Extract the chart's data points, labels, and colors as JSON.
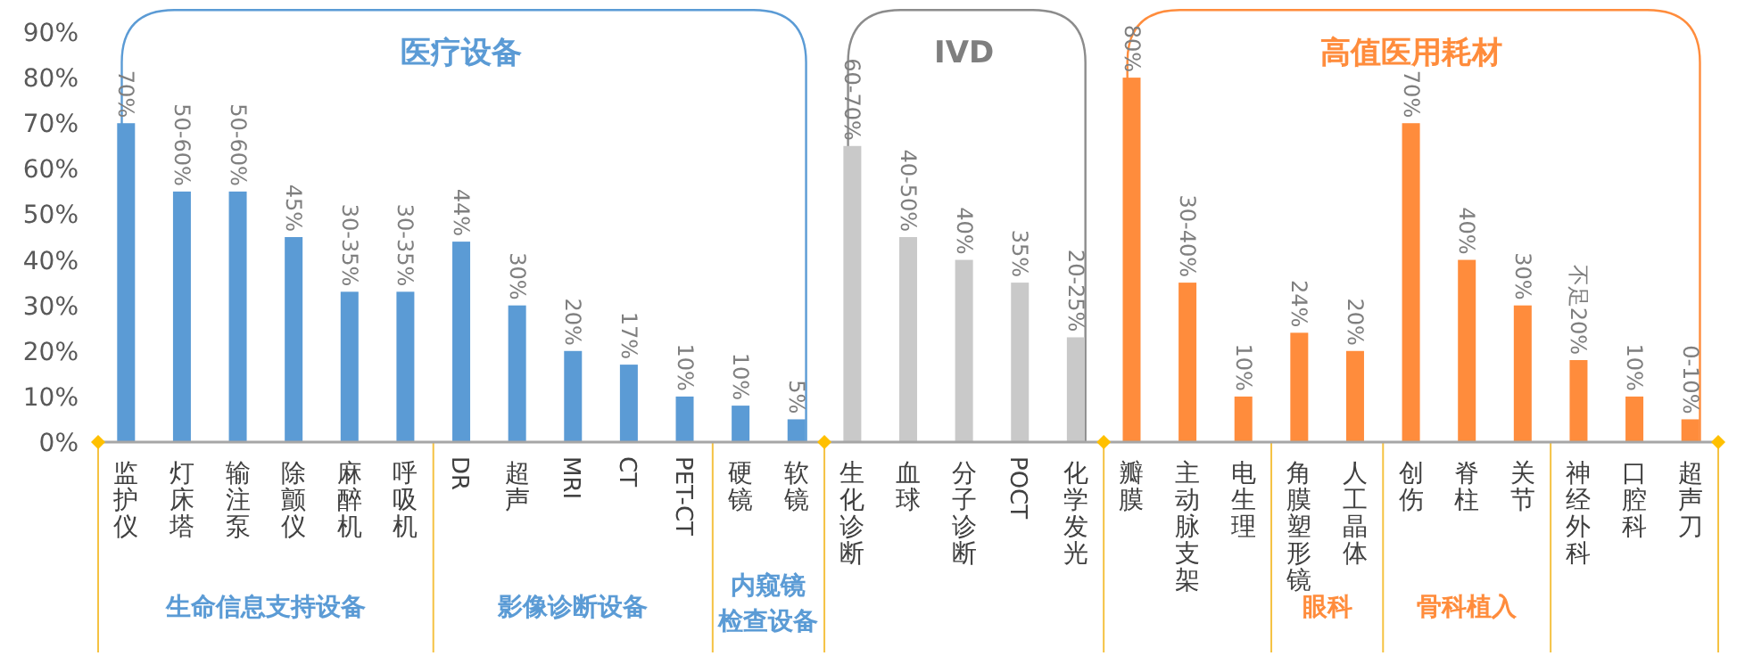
{
  "chart_data": {
    "type": "bar",
    "categories": [
      "监护仪",
      "灯床塔",
      "输注泵",
      "除颤仪",
      "麻醉机",
      "呼吸机",
      "DR",
      "超声",
      "MRI",
      "CT",
      "PET-CT",
      "硬镜",
      "软镜",
      "生化诊断",
      "血球",
      "分子诊断",
      "POCT",
      "化学发光",
      "瓣膜",
      "主动脉支架",
      "电生理",
      "角膜塑形镜",
      "人工晶体",
      "创伤",
      "脊柱",
      "关节",
      "神经外科",
      "口腔科",
      "超声刀"
    ],
    "values": [
      70,
      55,
      55,
      45,
      33,
      33,
      44,
      30,
      20,
      17,
      10,
      8,
      5,
      65,
      45,
      40,
      35,
      23,
      80,
      35,
      10,
      24,
      20,
      70,
      40,
      30,
      18,
      10,
      5
    ],
    "colors": [
      "#5b9bd5",
      "#5b9bd5",
      "#5b9bd5",
      "#5b9bd5",
      "#5b9bd5",
      "#5b9bd5",
      "#5b9bd5",
      "#5b9bd5",
      "#5b9bd5",
      "#5b9bd5",
      "#5b9bd5",
      "#5b9bd5",
      "#5b9bd5",
      "#c9c9c9",
      "#c9c9c9",
      "#c9c9c9",
      "#c9c9c9",
      "#c9c9c9",
      "#ff8c3c",
      "#ff8c3c",
      "#ff8c3c",
      "#ff8c3c",
      "#ff8c3c",
      "#ff8c3c",
      "#ff8c3c",
      "#ff8c3c",
      "#ff8c3c",
      "#ff8c3c",
      "#ff8c3c"
    ],
    "value_labels": [
      "70%",
      null,
      null,
      "45%",
      null,
      null,
      "44%",
      "30%",
      "20%",
      "17%",
      "10%",
      null,
      "5%",
      null,
      null,
      "40%",
      "35%",
      null,
      "80%",
      null,
      "10%",
      "24%",
      "20%",
      "70%",
      "40%",
      "30%",
      "不足20%",
      "10%",
      null
    ],
    "ylim": [
      0,
      90
    ],
    "yticks": [
      {
        "value": 0,
        "label": "0%"
      },
      {
        "value": 10,
        "label": "10%"
      },
      {
        "value": 20,
        "label": "20%"
      },
      {
        "value": 30,
        "label": "30%"
      },
      {
        "value": 40,
        "label": "40%"
      },
      {
        "value": 50,
        "label": "50%"
      },
      {
        "value": 60,
        "label": "60%"
      },
      {
        "value": 70,
        "label": "70%"
      },
      {
        "value": 80,
        "label": "80%"
      },
      {
        "value": 90,
        "label": "90%"
      }
    ],
    "annotations": [
      "医疗设备",
      "IVD",
      "高值医用耗材",
      "生命信息支持设备",
      "影像诊断设备",
      "内窥镜检查设备",
      "眼科",
      "骨科植入",
      {
        "text": "50-60%",
        "x": "灯床塔",
        "y": 55
      },
      {
        "text": "50-60%",
        "x": "输注泵",
        "y": 55
      },
      {
        "text": "30-35%",
        "x": "麻醉机",
        "y": 33
      },
      {
        "text": "30-35%",
        "x": "呼吸机",
        "y": 33
      },
      {
        "text": "10%",
        "x": "硬镜",
        "y": 8
      },
      {
        "text": "60-70%",
        "x": "生化诊断",
        "y": 65
      },
      {
        "text": "40-50%",
        "x": "血球",
        "y": 45
      },
      {
        "text": "20-25%",
        "x": "化学发光",
        "y": 23
      },
      {
        "text": "30-40%",
        "x": "主动脉支架",
        "y": 35
      },
      {
        "text": "0-10%",
        "x": "超声刀",
        "y": 5
      }
    ]
  }
}
